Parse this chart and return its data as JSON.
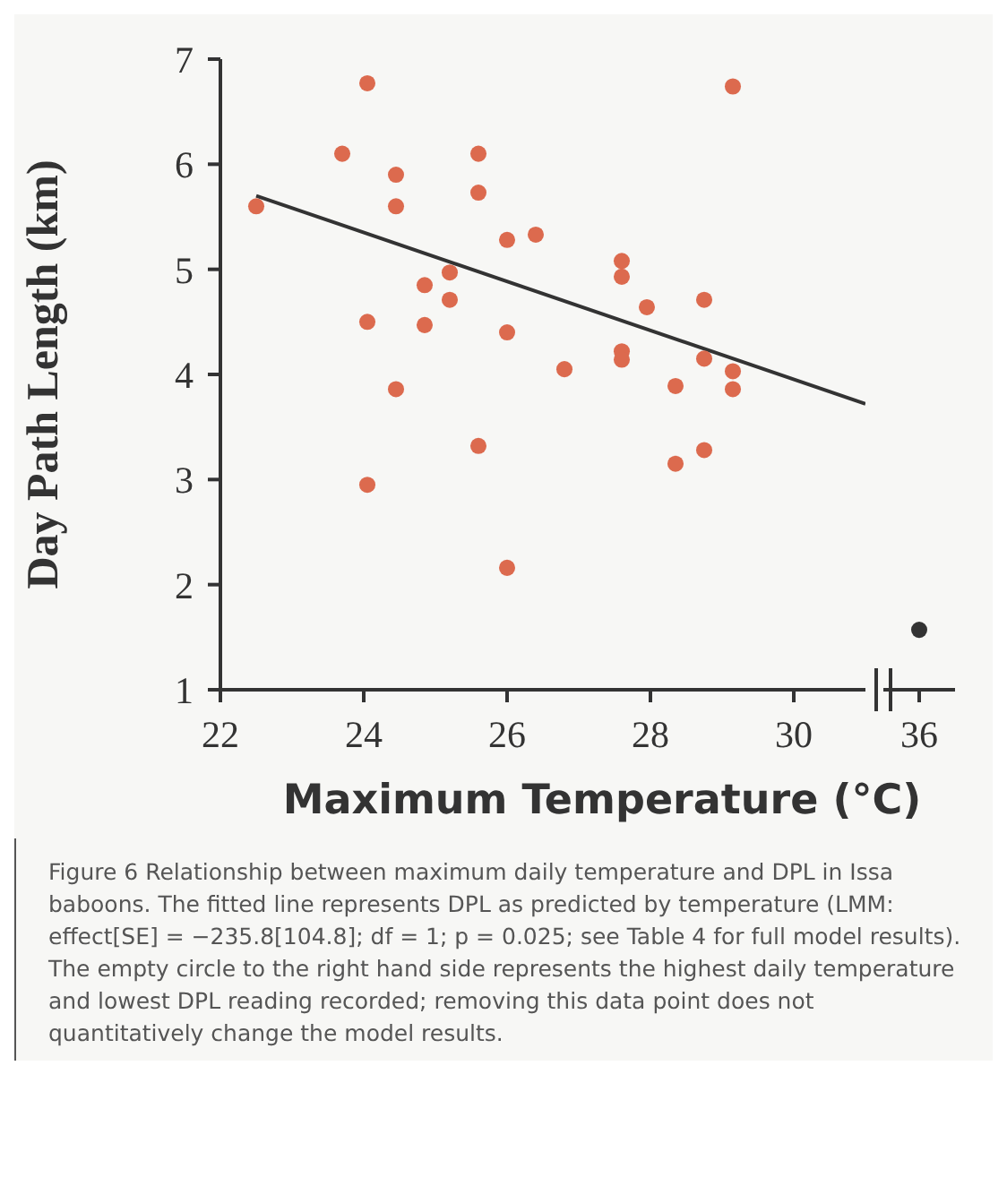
{
  "chart_data": [
    {
      "type": "scatter",
      "ylabel": "Day Path Length (km)",
      "xlabel": "Maximum Temperature (°C)",
      "xlim": [
        22,
        31
      ],
      "xticks": [
        22,
        24,
        26,
        28,
        30
      ],
      "ylim": [
        1,
        7
      ],
      "yticks": [
        1,
        2,
        3,
        4,
        5,
        6,
        7
      ],
      "marker": "circle",
      "annotations": [
        "Figure 6 Relationship between maximum daily temperature and DPL in Issa baboons. The fitted line represents DPL as predicted by temperature (LMM: effect[SE] = −235.8[104.8]; df = 1; p = 0.025; see Table 4 for full model results). The empty circle to the right hand side represents the highest daily temperature and lowest DPL reading recorded; removing this data point does not quantitatively change the model results."
      ],
      "series": [
        {
          "color": "#dc6a4e",
          "x": [
            22.5,
            24.05,
            23.7,
            24.45,
            24.45,
            25.6,
            25.6,
            26.0,
            24.85,
            25.2,
            25.2,
            24.05,
            24.85,
            26.0,
            24.45,
            25.6,
            24.05,
            26.0,
            26.4,
            27.6,
            27.6,
            27.95,
            28.75,
            26.8,
            27.6,
            27.6,
            28.75,
            29.15,
            29.15,
            28.35,
            28.75,
            28.35,
            29.15
          ],
          "values": [
            5.6,
            6.77,
            6.1,
            5.9,
            5.6,
            6.1,
            5.73,
            5.28,
            4.85,
            4.97,
            4.71,
            4.5,
            4.47,
            4.4,
            3.86,
            3.32,
            2.95,
            2.16,
            5.33,
            5.08,
            4.93,
            4.64,
            4.71,
            4.05,
            4.22,
            4.14,
            4.15,
            4.03,
            3.86,
            3.89,
            3.28,
            3.15,
            6.74
          ]
        },
        {
          "type": "line",
          "marker": "none",
          "color": "#333333",
          "x": [
            22.5,
            31
          ],
          "values": [
            5.7,
            3.72
          ]
        }
      ]
    },
    {
      "type": "scatter",
      "categories": [
        "36"
      ],
      "ylim": [
        1,
        7
      ],
      "yticks": [
        1,
        2,
        3,
        4,
        5,
        6,
        7
      ],
      "tick_labels": "x",
      "marker": "circle",
      "series": [
        {
          "color": "#333333",
          "values": [
            1.57
          ]
        }
      ]
    }
  ]
}
